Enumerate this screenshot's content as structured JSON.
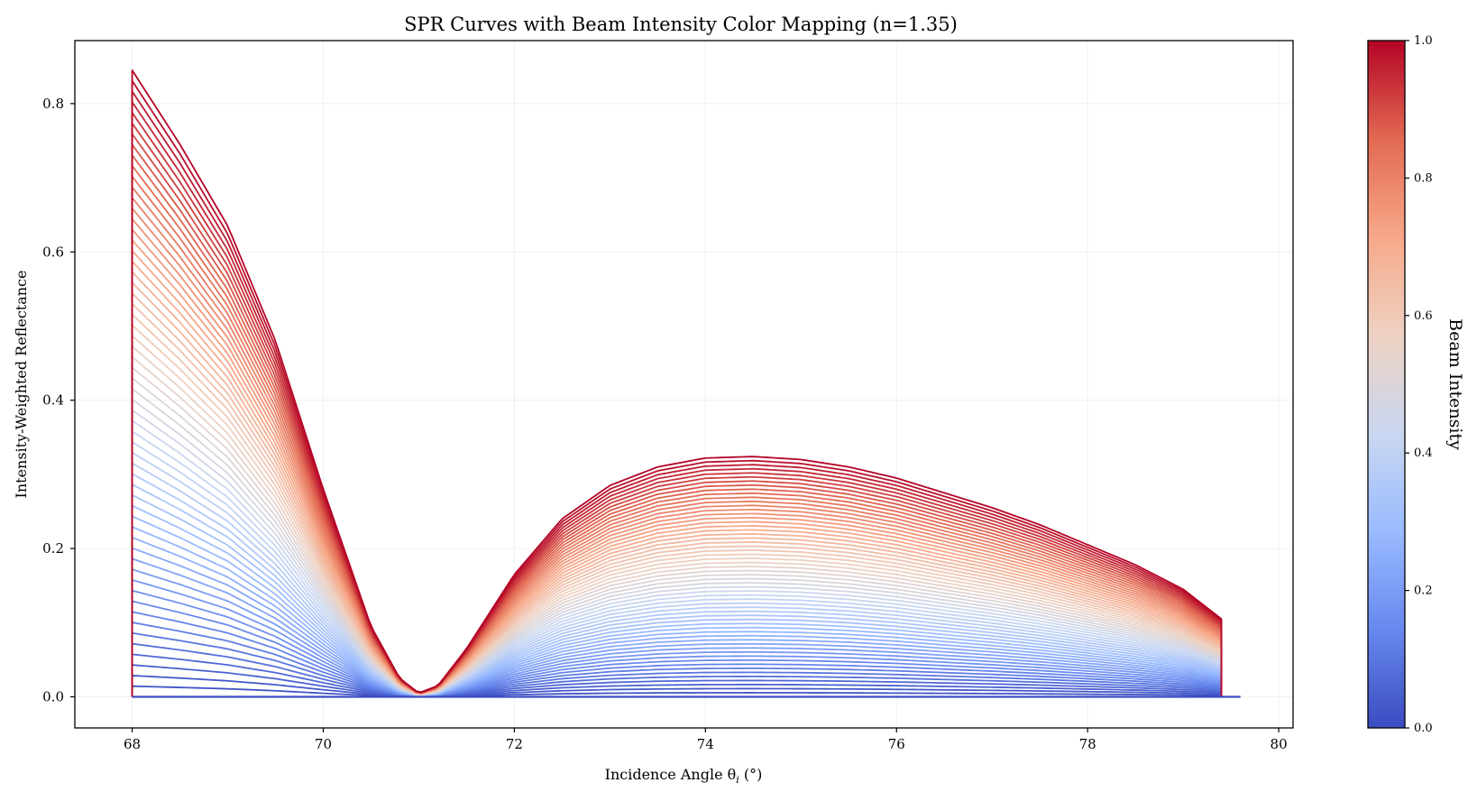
{
  "chart_data": {
    "type": "line",
    "title": "SPR Curves with Beam Intensity Color Mapping (n=1.35)",
    "xlabel": "Incidence Angle θ",
    "xlabel_sub": "i",
    "xlabel_unit": " (°)",
    "ylabel": "Intensity-Weighted Reflectance",
    "xlim": [
      67.4,
      80.15
    ],
    "ylim": [
      -0.042,
      0.885
    ],
    "x_ticks": [
      68,
      70,
      72,
      74,
      76,
      78,
      80
    ],
    "y_ticks": [
      0.0,
      0.2,
      0.4,
      0.6,
      0.8
    ],
    "x_tick_labels": [
      "68",
      "70",
      "72",
      "74",
      "76",
      "78",
      "80"
    ],
    "y_tick_labels": [
      "0.0",
      "0.2",
      "0.4",
      "0.6",
      "0.8"
    ],
    "grid": true,
    "colormap": "coolwarm",
    "curve_count": 60,
    "intensity_range": [
      0,
      1
    ],
    "x_range_curves": [
      68.0,
      79.4
    ],
    "baseline_end_x": 79.6,
    "max_intensity_curve": {
      "x": [
        68.0,
        68.5,
        69.0,
        69.5,
        70.0,
        70.5,
        70.8,
        71.0,
        71.2,
        71.5,
        72.0,
        72.5,
        73.0,
        73.5,
        74.0,
        74.5,
        75.0,
        75.5,
        76.0,
        76.5,
        77.0,
        77.5,
        78.0,
        78.5,
        79.0,
        79.4
      ],
      "y": [
        0.845,
        0.745,
        0.635,
        0.48,
        0.28,
        0.095,
        0.025,
        0.005,
        0.015,
        0.065,
        0.165,
        0.24,
        0.285,
        0.31,
        0.322,
        0.324,
        0.32,
        0.31,
        0.295,
        0.275,
        0.255,
        0.232,
        0.205,
        0.178,
        0.145,
        0.105
      ]
    },
    "colorbar": {
      "label": "Beam Intensity",
      "ticks": [
        0.0,
        0.2,
        0.4,
        0.6,
        0.8,
        1.0
      ],
      "tick_labels": [
        "0.0",
        "0.2",
        "0.4",
        "0.6",
        "0.8",
        "1.0"
      ],
      "colors": [
        "#3b4cc0",
        "#6788ee",
        "#9abbff",
        "#c9d7f0",
        "#edd1c2",
        "#f7a889",
        "#e26952",
        "#b40426"
      ]
    }
  }
}
